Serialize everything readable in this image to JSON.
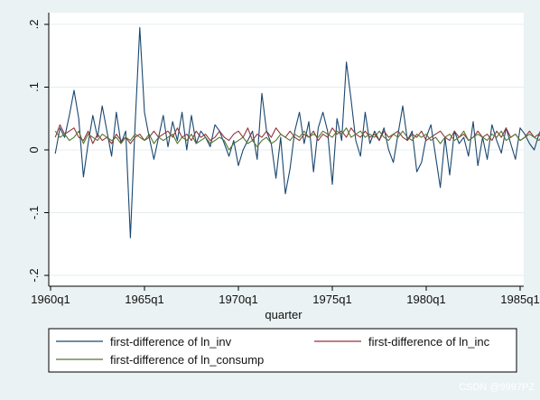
{
  "chart_data": {
    "type": "line",
    "xlabel": "quarter",
    "ylabel": "",
    "xlim": [
      1960,
      1985
    ],
    "ylim": [
      -0.2,
      0.2
    ],
    "x_ticks": [
      1960,
      1965,
      1970,
      1975,
      1980,
      1985
    ],
    "x_tick_labels": [
      "1960q1",
      "1965q1",
      "1970q1",
      "1975q1",
      "1980q1",
      "1985q1"
    ],
    "y_ticks": [
      0.2,
      0.1,
      0,
      -0.1,
      -0.2
    ],
    "y_tick_labels": [
      ".2",
      ".1",
      "0",
      "-.1",
      "-.2"
    ],
    "grid": "horizontal",
    "legend_position": "bottom",
    "series": [
      {
        "name": "first-difference of ln_inv",
        "color": "#1a476f",
        "start": 1960.25,
        "step": 0.25,
        "values": [
          -0.006,
          0.035,
          0.02,
          0.055,
          0.095,
          0.05,
          -0.043,
          0.01,
          0.055,
          0.02,
          0.07,
          0.03,
          -0.01,
          0.06,
          0.01,
          0.03,
          -0.14,
          0.04,
          0.195,
          0.06,
          0.02,
          -0.015,
          0.02,
          0.055,
          0.005,
          0.045,
          0.015,
          0.06,
          0.0,
          0.055,
          0.01,
          0.03,
          0.02,
          0.005,
          0.04,
          0.03,
          0.01,
          -0.01,
          0.015,
          -0.025,
          0.0,
          0.015,
          0.03,
          -0.015,
          0.09,
          0.03,
          0.01,
          -0.045,
          0.02,
          -0.07,
          -0.03,
          0.03,
          0.06,
          0.01,
          0.045,
          -0.035,
          0.035,
          0.06,
          0.03,
          -0.055,
          0.05,
          0.015,
          0.14,
          0.08,
          0.015,
          -0.01,
          0.06,
          0.01,
          0.03,
          0.015,
          0.035,
          0.0,
          -0.02,
          0.025,
          0.07,
          0.015,
          0.03,
          -0.035,
          -0.02,
          0.02,
          0.04,
          -0.01,
          -0.06,
          0.02,
          -0.04,
          0.03,
          0.01,
          0.02,
          -0.01,
          0.045,
          -0.025,
          0.02,
          -0.015,
          0.04,
          0.015,
          -0.005,
          0.035,
          0.01,
          -0.015,
          0.035,
          0.025,
          0.01,
          0.0,
          0.025,
          0.04,
          0.005,
          0.03,
          0.09,
          0.045,
          0.02,
          -0.015,
          0.04,
          0.01,
          -0.02,
          0.035,
          -0.01,
          0.0,
          0.015,
          0.025,
          -0.045,
          -0.03,
          0.005,
          0.03,
          0.02,
          -0.01,
          0.005
        ]
      },
      {
        "name": "first-difference of ln_inc",
        "color": "#90353b",
        "start": 1960.25,
        "step": 0.25,
        "values": [
          0.02,
          0.04,
          0.025,
          0.03,
          0.035,
          0.02,
          0.015,
          0.03,
          0.01,
          0.025,
          0.015,
          0.02,
          0.01,
          0.025,
          0.015,
          0.02,
          0.01,
          0.02,
          0.025,
          0.015,
          0.02,
          0.03,
          0.02,
          0.025,
          0.03,
          0.02,
          0.035,
          0.02,
          0.025,
          0.015,
          0.03,
          0.02,
          0.025,
          0.015,
          0.02,
          0.03,
          0.02,
          0.015,
          0.025,
          0.03,
          0.02,
          0.035,
          0.015,
          0.025,
          0.02,
          0.03,
          0.02,
          0.035,
          0.025,
          0.02,
          0.03,
          0.02,
          0.015,
          0.025,
          0.02,
          0.03,
          0.015,
          0.025,
          0.02,
          0.035,
          0.025,
          0.03,
          0.02,
          0.035,
          0.025,
          0.02,
          0.03,
          0.02,
          0.025,
          0.015,
          0.03,
          0.02,
          0.025,
          0.03,
          0.02,
          0.015,
          0.025,
          0.02,
          0.03,
          0.015,
          0.02,
          0.025,
          0.03,
          0.02,
          0.015,
          0.03,
          0.02,
          0.025,
          0.015,
          0.02,
          0.03,
          0.02,
          0.025,
          0.015,
          0.03,
          0.02,
          0.035,
          0.02,
          0.025,
          0.015,
          0.02,
          0.03,
          0.02,
          0.025,
          0.015,
          0.02,
          0.025,
          0.03,
          0.02,
          0.015,
          0.025,
          0.02,
          0.015,
          0.01,
          0.02,
          0.015,
          0.025,
          0.01,
          0.015,
          0.005,
          -0.005,
          0.01,
          0.005,
          0.01,
          0.005,
          0.01
        ]
      },
      {
        "name": "first-difference of ln_consump",
        "color": "#55752f",
        "start": 1960.25,
        "step": 0.25,
        "values": [
          0.03,
          0.02,
          0.025,
          0.015,
          0.02,
          0.03,
          0.01,
          0.025,
          0.02,
          0.015,
          0.025,
          0.02,
          0.015,
          0.02,
          0.01,
          0.02,
          0.015,
          0.025,
          0.02,
          0.015,
          0.025,
          0.01,
          0.02,
          0.015,
          0.02,
          0.025,
          0.01,
          0.02,
          0.015,
          0.025,
          0.01,
          0.015,
          0.02,
          0.01,
          0.015,
          0.02,
          0.015,
          0.0,
          0.01,
          0.015,
          0.02,
          0.01,
          0.015,
          0.005,
          0.015,
          0.02,
          0.01,
          0.015,
          0.025,
          0.02,
          0.015,
          0.025,
          0.02,
          0.03,
          0.02,
          0.025,
          0.02,
          0.03,
          0.025,
          0.02,
          0.03,
          0.025,
          0.035,
          0.02,
          0.025,
          0.03,
          0.02,
          0.025,
          0.02,
          0.03,
          0.02,
          0.015,
          0.025,
          0.02,
          0.03,
          0.02,
          0.015,
          0.025,
          0.02,
          0.025,
          0.015,
          0.02,
          0.01,
          0.02,
          0.025,
          0.015,
          0.02,
          0.03,
          0.015,
          0.02,
          0.025,
          0.02,
          0.015,
          0.025,
          0.02,
          0.03,
          0.015,
          0.02,
          0.025,
          0.015,
          0.02,
          0.025,
          0.02,
          0.015,
          0.025,
          0.02,
          0.03,
          0.015,
          0.02,
          0.01,
          0.02,
          0.015,
          0.025,
          0.005,
          0.015,
          0.02,
          0.01,
          0.015,
          0.005,
          0.01,
          0.0,
          0.005,
          0.01,
          0.005,
          0.01,
          0.005
        ]
      }
    ]
  },
  "watermark": "CSDN @9997PZ"
}
